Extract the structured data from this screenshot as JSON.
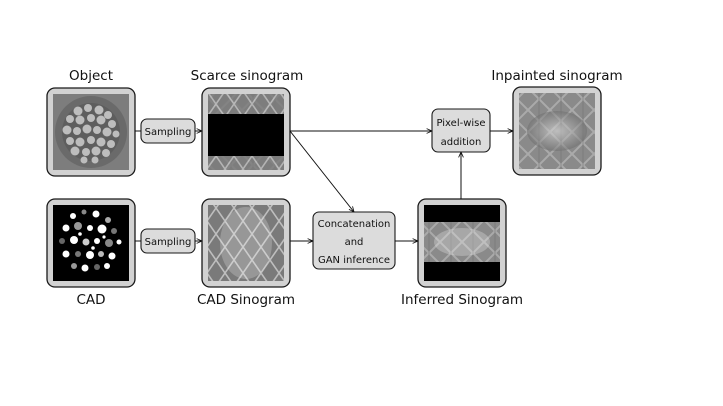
{
  "labels": {
    "object": "Object",
    "scarce_sinogram": "Scarce sinogram",
    "inpainted_sinogram": "Inpainted sinogram",
    "cad": "CAD",
    "cad_sinogram": "CAD Sinogram",
    "inferred_sinogram": "Inferred Sinogram"
  },
  "process": {
    "sampling_top": "Sampling",
    "sampling_bottom": "Sampling",
    "pixelwise_line1": "Pixel-wise",
    "pixelwise_line2": "addition",
    "gan_line1": "Concatenation",
    "gan_line2": "and",
    "gan_line3": "GAN inference"
  }
}
